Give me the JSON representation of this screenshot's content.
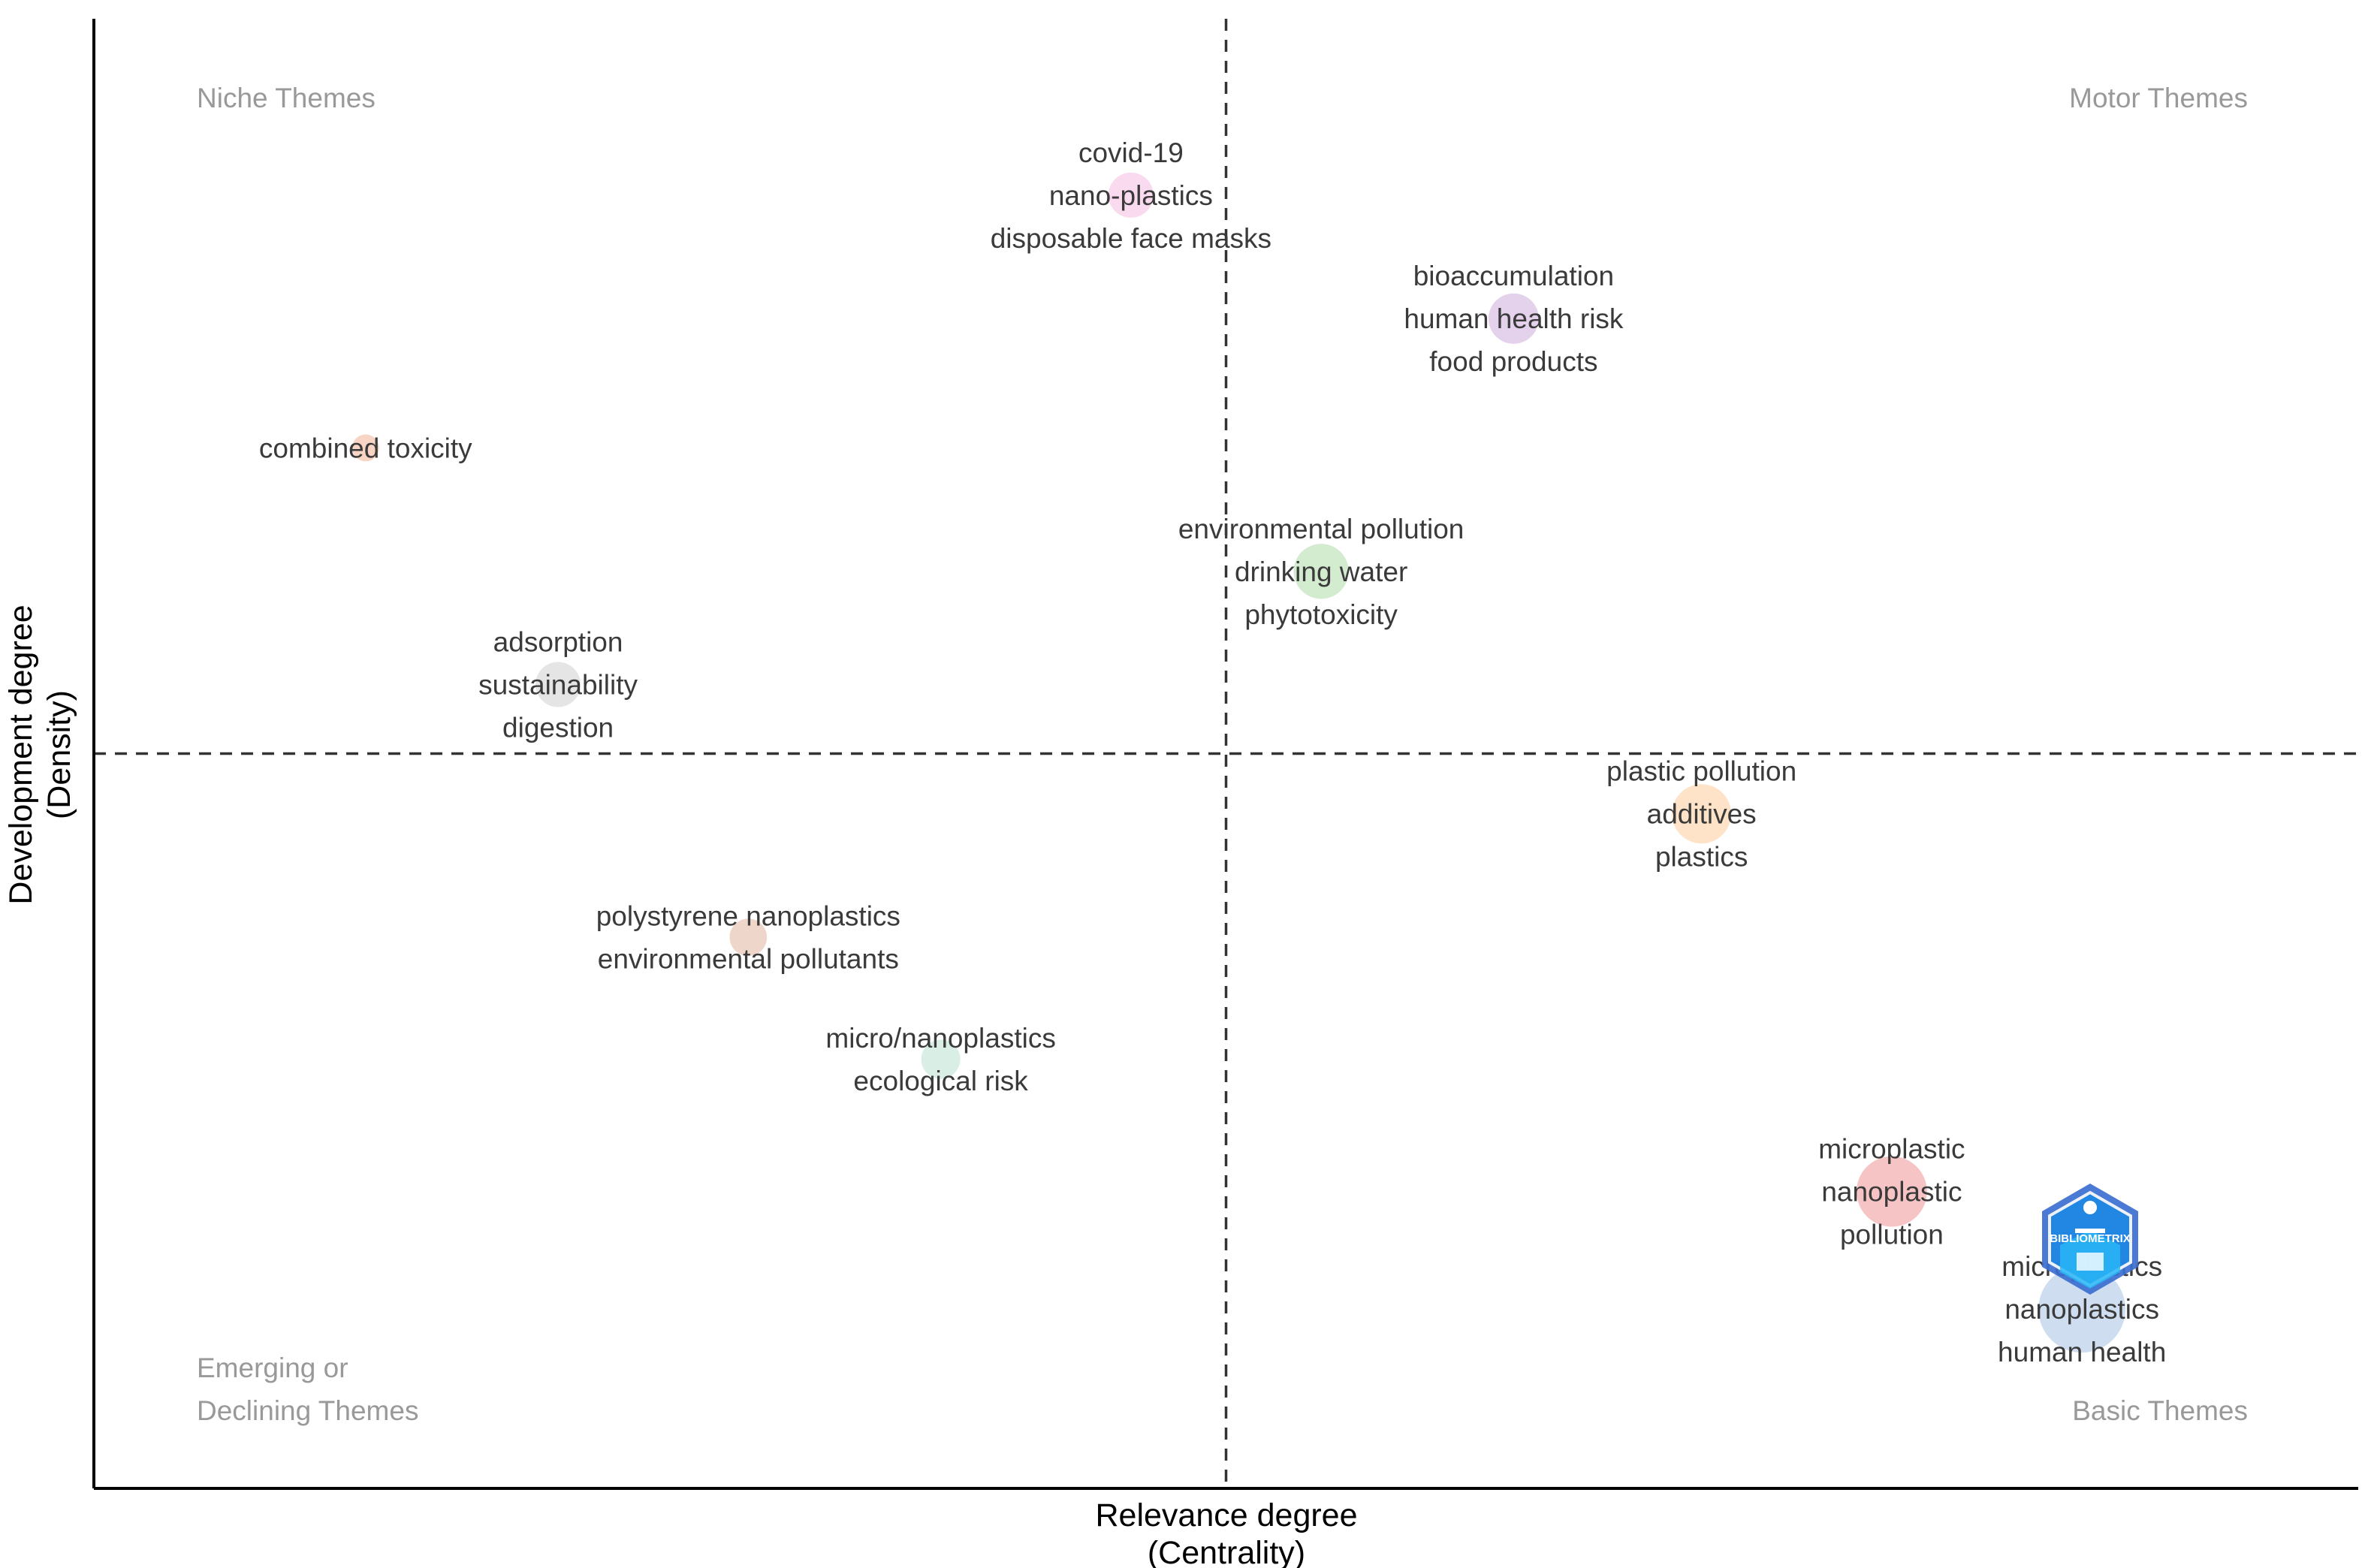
{
  "chart_data": {
    "type": "scatter",
    "subtype": "thematic-map",
    "xlabel": "Relevance degree",
    "xlabel_sub": "(Centrality)",
    "ylabel": "Development degree",
    "ylabel_sub": "(Density)",
    "xlim": [
      0,
      100
    ],
    "ylim": [
      0,
      100
    ],
    "ref_x": 50,
    "ref_y": 50,
    "grid": false,
    "quadrants": {
      "top_left": [
        "Niche Themes"
      ],
      "top_right": [
        "Motor Themes"
      ],
      "bottom_left": [
        "Emerging or",
        "Declining Themes"
      ],
      "bottom_right": [
        "Basic Themes"
      ]
    },
    "clusters": [
      {
        "name": "covid-19",
        "x": 45.8,
        "y": 88.0,
        "size": 1.4,
        "color": "#f4b6de",
        "labels": [
          "covid-19",
          "nano-plastics",
          "disposable face masks"
        ]
      },
      {
        "name": "bioaccumulation",
        "x": 62.7,
        "y": 79.6,
        "size": 1.8,
        "color": "#c9a6d9",
        "labels": [
          "bioaccumulation",
          "human health risk",
          "food products"
        ]
      },
      {
        "name": "combined toxicity",
        "x": 12.0,
        "y": 70.8,
        "size": 0.4,
        "color": "#f1a98c",
        "labels": [
          "combined toxicity"
        ]
      },
      {
        "name": "environmental pollution",
        "x": 54.2,
        "y": 62.4,
        "size": 2.2,
        "color": "#a8d8a0",
        "labels": [
          "environmental pollution",
          "drinking water",
          "phytotoxicity"
        ]
      },
      {
        "name": "adsorption",
        "x": 20.5,
        "y": 54.7,
        "size": 1.4,
        "color": "#cccccc",
        "labels": [
          "adsorption",
          "sustainability",
          "digestion"
        ]
      },
      {
        "name": "plastic pollution",
        "x": 71.0,
        "y": 45.9,
        "size": 2.6,
        "color": "#fdc892",
        "labels": [
          "plastic pollution",
          "additives",
          "plastics"
        ]
      },
      {
        "name": "polystyrene nanoplastics",
        "x": 28.9,
        "y": 37.5,
        "size": 0.9,
        "color": "#dfae96",
        "labels": [
          "polystyrene nanoplastics",
          "environmental pollutants"
        ]
      },
      {
        "name": "micro/nanoplastics",
        "x": 37.4,
        "y": 29.2,
        "size": 1.0,
        "color": "#b4e0cc",
        "labels": [
          "micro/nanoplastics",
          "ecological risk"
        ]
      },
      {
        "name": "microplastic",
        "x": 79.4,
        "y": 20.2,
        "size": 3.8,
        "color": "#ef8a8c",
        "labels": [
          "microplastic",
          "nanoplastic",
          "pollution"
        ]
      },
      {
        "name": "microplastics",
        "x": 87.8,
        "y": 12.2,
        "size": 6.0,
        "color": "#9dbbe0",
        "labels": [
          "microplastics",
          "nanoplastics",
          "human health"
        ]
      }
    ],
    "watermark": "BIBLIOMETRIX"
  }
}
